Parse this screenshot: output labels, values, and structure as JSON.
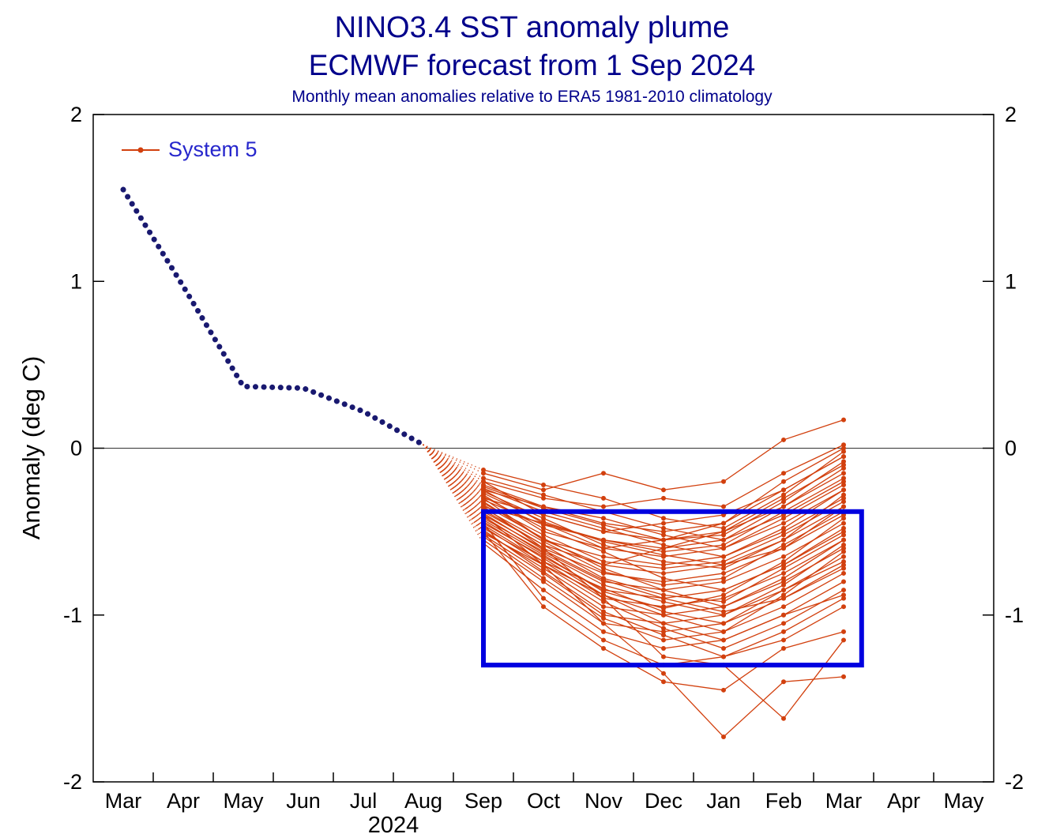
{
  "title": "NINO3.4 SST anomaly plume",
  "subtitle": "ECMWF forecast from 1 Sep 2024",
  "caption": "Monthly mean anomalies relative to ERA5 1981-2010 climatology",
  "legend": {
    "label": "System 5"
  },
  "colors": {
    "title_text": "#00008b",
    "legend_text": "#2626cc",
    "observed": "#191970",
    "ensemble": "#d2400e",
    "box": "#0000e0",
    "axis": "#000000",
    "zero_line": "#333333"
  },
  "chart_data": {
    "type": "line",
    "title": "NINO3.4 SST anomaly plume",
    "subtitle": "ECMWF forecast from 1 Sep 2024",
    "caption": "Monthly mean anomalies relative to ERA5 1981-2010 climatology",
    "xlabel": "",
    "ylabel": "Anomaly (deg C)",
    "ylim": [
      -2,
      2
    ],
    "y_ticks": [
      -2,
      -1,
      0,
      1,
      2
    ],
    "grid": false,
    "legend_position": "top-left-inside",
    "categories": [
      "Mar",
      "Apr",
      "May",
      "Jun",
      "Jul",
      "Aug",
      "Sep",
      "Oct",
      "Nov",
      "Dec",
      "Jan",
      "Feb",
      "Mar",
      "Apr",
      "May"
    ],
    "x_year_label": {
      "text": "2024",
      "position_index": 4.5
    },
    "observed": {
      "style": "bold-dotted-navy",
      "x_start_index": 0,
      "values": [
        1.55,
        0.97,
        0.37,
        0.36,
        0.22,
        0.02
      ]
    },
    "forecast": {
      "name": "System 5",
      "style": "thin-red-lines-with-dots",
      "x_start_index": 6,
      "months": [
        "Sep",
        "Oct",
        "Nov",
        "Dec",
        "Jan",
        "Feb",
        "Mar"
      ],
      "members": [
        [
          -0.15,
          -0.25,
          -0.15,
          -0.25,
          -0.2,
          0.05,
          0.17
        ],
        [
          -0.2,
          -0.3,
          -0.35,
          -0.3,
          -0.35,
          -0.15,
          0.02
        ],
        [
          -0.25,
          -0.35,
          -0.45,
          -0.5,
          -0.45,
          -0.25,
          -0.05
        ],
        [
          -0.3,
          -0.4,
          -0.5,
          -0.55,
          -0.5,
          -0.35,
          -0.15
        ],
        [
          -0.35,
          -0.45,
          -0.55,
          -0.6,
          -0.55,
          -0.4,
          -0.2
        ],
        [
          -0.28,
          -0.5,
          -0.6,
          -0.65,
          -0.6,
          -0.45,
          -0.25
        ],
        [
          -0.32,
          -0.55,
          -0.65,
          -0.7,
          -0.65,
          -0.5,
          -0.3
        ],
        [
          -0.38,
          -0.58,
          -0.7,
          -0.75,
          -0.7,
          -0.55,
          -0.35
        ],
        [
          -0.4,
          -0.6,
          -0.75,
          -0.8,
          -0.75,
          -0.6,
          -0.4
        ],
        [
          -0.42,
          -0.62,
          -0.8,
          -0.85,
          -0.8,
          -0.65,
          -0.45
        ],
        [
          -0.45,
          -0.65,
          -0.85,
          -0.9,
          -0.85,
          -0.7,
          -0.5
        ],
        [
          -0.48,
          -0.68,
          -0.9,
          -0.95,
          -0.9,
          -0.75,
          -0.55
        ],
        [
          -0.5,
          -0.72,
          -0.95,
          -1.0,
          -0.95,
          -0.8,
          -0.6
        ],
        [
          -0.52,
          -0.75,
          -1.0,
          -1.05,
          -1.0,
          -0.85,
          -0.65
        ],
        [
          -0.55,
          -0.8,
          -1.05,
          -1.1,
          -1.05,
          -0.9,
          -0.7
        ],
        [
          -0.57,
          -0.85,
          -1.1,
          -1.2,
          -1.15,
          -1.0,
          -0.8
        ],
        [
          -0.45,
          -0.9,
          -1.15,
          -1.3,
          -1.25,
          -1.1,
          -0.9
        ],
        [
          -0.5,
          -0.95,
          -1.2,
          -1.4,
          -1.45,
          -1.2,
          -1.1
        ],
        [
          -0.4,
          -0.7,
          -1.05,
          -1.35,
          -1.73,
          -1.4,
          -1.37
        ],
        [
          -0.35,
          -0.6,
          -0.9,
          -1.25,
          -1.3,
          -1.62,
          -1.15
        ],
        [
          -0.3,
          -0.55,
          -0.7,
          -0.6,
          -0.5,
          -0.3,
          -0.1
        ],
        [
          -0.25,
          -0.45,
          -0.6,
          -0.55,
          -0.45,
          -0.2,
          0.0
        ],
        [
          -0.2,
          -0.4,
          -0.5,
          -0.45,
          -0.4,
          -0.25,
          -0.05
        ],
        [
          -0.33,
          -0.52,
          -0.68,
          -0.72,
          -0.68,
          -0.52,
          -0.32
        ],
        [
          -0.36,
          -0.56,
          -0.74,
          -0.82,
          -0.78,
          -0.58,
          -0.38
        ],
        [
          -0.44,
          -0.66,
          -0.88,
          -1.0,
          -1.1,
          -0.95,
          -0.75
        ],
        [
          -0.47,
          -0.7,
          -0.92,
          -1.08,
          -1.2,
          -1.05,
          -0.85
        ],
        [
          -0.53,
          -0.78,
          -1.02,
          -1.15,
          -1.1,
          -0.88,
          -0.62
        ],
        [
          -0.29,
          -0.48,
          -0.62,
          -0.78,
          -0.85,
          -0.7,
          -0.48
        ],
        [
          -0.22,
          -0.35,
          -0.42,
          -0.52,
          -0.6,
          -0.42,
          -0.22
        ],
        [
          -0.18,
          -0.28,
          -0.38,
          -0.48,
          -0.55,
          -0.35,
          -0.12
        ],
        [
          -0.41,
          -0.63,
          -0.82,
          -0.92,
          -1.0,
          -0.82,
          -0.58
        ],
        [
          -0.37,
          -0.58,
          -0.78,
          -0.88,
          -0.92,
          -0.72,
          -0.52
        ],
        [
          -0.26,
          -0.42,
          -0.58,
          -0.68,
          -0.72,
          -0.55,
          -0.28
        ],
        [
          -0.49,
          -0.74,
          -0.98,
          -1.12,
          -1.25,
          -1.15,
          -0.95
        ],
        [
          -0.31,
          -0.46,
          -0.55,
          -0.62,
          -0.58,
          -0.38,
          -0.18
        ],
        [
          -0.43,
          -0.64,
          -0.86,
          -0.96,
          -0.88,
          -0.68,
          -0.42
        ],
        [
          -0.34,
          -0.54,
          -0.72,
          -0.85,
          -0.95,
          -0.78,
          -0.55
        ],
        [
          -0.24,
          -0.38,
          -0.48,
          -0.58,
          -0.65,
          -0.48,
          -0.25
        ],
        [
          -0.46,
          -0.68,
          -0.84,
          -0.98,
          -1.05,
          -0.85,
          -0.68
        ],
        [
          -0.27,
          -0.44,
          -0.56,
          -0.64,
          -0.7,
          -0.6,
          -0.35
        ],
        [
          -0.39,
          -0.61,
          -0.79,
          -0.9,
          -0.98,
          -0.9,
          -0.72
        ],
        [
          -0.51,
          -0.7,
          -0.88,
          -1.05,
          -1.15,
          -1.0,
          -0.88
        ],
        [
          -0.23,
          -0.36,
          -0.46,
          -0.55,
          -0.52,
          -0.32,
          -0.08
        ],
        [
          -0.13,
          -0.22,
          -0.3,
          -0.42,
          -0.48,
          -0.28,
          -0.02
        ]
      ]
    },
    "highlight_box": {
      "x1_index": 6.0,
      "x2_index": 12.3,
      "y_top": -0.38,
      "y_bottom": -1.3
    }
  }
}
